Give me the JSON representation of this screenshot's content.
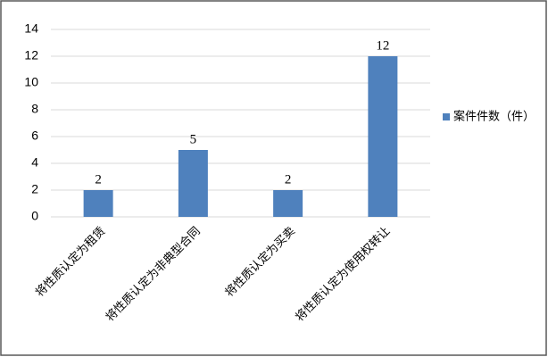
{
  "chart_data": {
    "type": "bar",
    "categories": [
      "将性质认定为租赁",
      "将性质认定为非典型合同",
      "将性质认定为买卖",
      "将性质认定为使用权转让"
    ],
    "series": [
      {
        "name": "案件件数（件）",
        "color": "#4f81bd",
        "values": [
          2,
          5,
          2,
          12
        ]
      }
    ],
    "ylim": [
      0,
      14
    ],
    "yticks": [
      0,
      2,
      4,
      6,
      8,
      10,
      12,
      14
    ],
    "grid": true,
    "legend": "right"
  }
}
